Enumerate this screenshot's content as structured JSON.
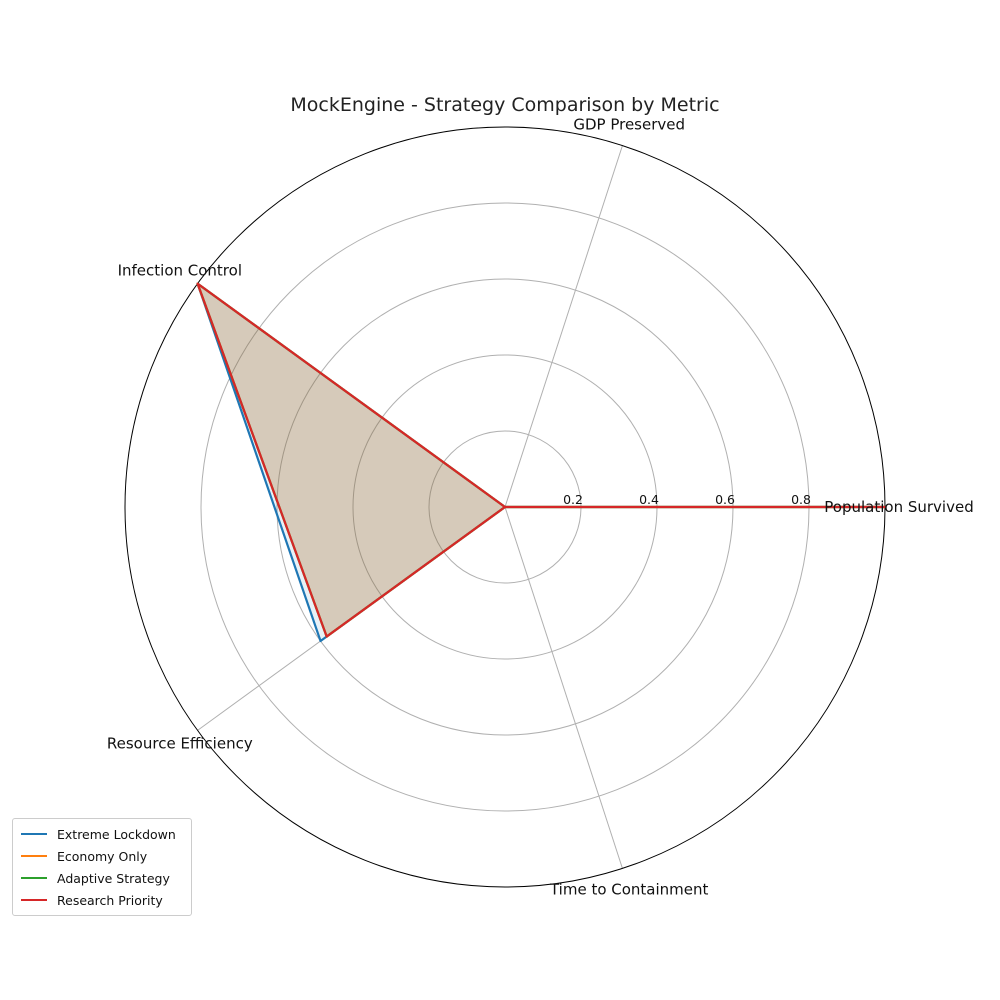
{
  "chart_data": {
    "type": "radar",
    "title": "MockEngine - Strategy Comparison by Metric",
    "categories": [
      "Population Survived",
      "GDP Preserved",
      "Infection Control",
      "Resource Efficiency",
      "Time to Containment"
    ],
    "rlim": [
      0,
      1.0
    ],
    "rticks": [
      0.2,
      0.4,
      0.6,
      0.8
    ],
    "rtick_labels": [
      "0.2",
      "0.4",
      "0.6",
      "0.8"
    ],
    "grid": true,
    "legend": "lower-left",
    "series": [
      {
        "name": "Extreme Lockdown",
        "color": "#1f77b4",
        "values": [
          1.0,
          0.0,
          1.0,
          0.6,
          0.0
        ]
      },
      {
        "name": "Economy Only",
        "color": "#ff7f0e",
        "values": [
          1.0,
          0.0,
          1.0,
          0.58,
          0.0
        ]
      },
      {
        "name": "Adaptive Strategy",
        "color": "#2ca02c",
        "values": [
          1.0,
          0.0,
          1.0,
          0.58,
          0.0
        ]
      },
      {
        "name": "Research Priority",
        "color": "#d62728",
        "values": [
          1.0,
          0.0,
          1.0,
          0.58,
          0.0
        ]
      }
    ]
  }
}
